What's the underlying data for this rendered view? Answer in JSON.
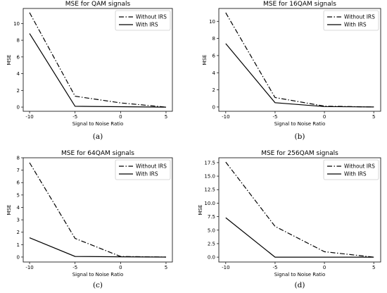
{
  "chart_data": [
    {
      "type": "line",
      "title": "MSE for QAM signals",
      "xlabel": "Signal to Noise Ratio",
      "ylabel": "MSE",
      "caption": "(a)",
      "x": [
        -10,
        -5,
        0,
        5
      ],
      "x_ticks": [
        -10,
        -5,
        0,
        5
      ],
      "y_ticks": [
        0,
        2,
        4,
        6,
        8,
        10
      ],
      "ylim": [
        -0.5,
        11.8
      ],
      "legend_position": "top-right",
      "series": [
        {
          "name": "Without IRS",
          "style": "dashdot",
          "values": [
            11.3,
            1.3,
            0.5,
            0.0
          ]
        },
        {
          "name": "With IRS",
          "style": "solid",
          "values": [
            8.8,
            0.1,
            0.05,
            0.0
          ]
        }
      ]
    },
    {
      "type": "line",
      "title": "MSE for 16QAM signals",
      "xlabel": "Signal to Noise Ratio",
      "ylabel": "MSE",
      "caption": "(b)",
      "x": [
        -10,
        -5,
        0,
        5
      ],
      "x_ticks": [
        -10,
        -5,
        0,
        5
      ],
      "y_ticks": [
        0,
        2,
        4,
        6,
        8,
        10
      ],
      "ylim": [
        -0.5,
        11.5
      ],
      "legend_position": "top-right",
      "series": [
        {
          "name": "Without IRS",
          "style": "dashdot",
          "values": [
            11.0,
            1.1,
            0.1,
            0.0
          ]
        },
        {
          "name": "With IRS",
          "style": "solid",
          "values": [
            7.4,
            0.5,
            0.05,
            0.0
          ]
        }
      ]
    },
    {
      "type": "line",
      "title": "MSE for 64QAM signals",
      "xlabel": "Signal to Noise Ratio",
      "ylabel": "MSE",
      "caption": "(c)",
      "x": [
        -10,
        -5,
        0,
        5
      ],
      "x_ticks": [
        -10,
        -5,
        0,
        5
      ],
      "y_ticks": [
        0,
        1,
        2,
        3,
        4,
        5,
        6,
        7,
        8
      ],
      "ylim": [
        -0.4,
        8.0
      ],
      "legend_position": "top-right",
      "series": [
        {
          "name": "Without IRS",
          "style": "dashdot",
          "values": [
            7.6,
            1.5,
            0.05,
            0.0
          ]
        },
        {
          "name": "With IRS",
          "style": "solid",
          "values": [
            1.55,
            0.05,
            0.02,
            0.0
          ]
        }
      ]
    },
    {
      "type": "line",
      "title": "MSE for 256QAM signals",
      "xlabel": "Signal to Noise Ratio",
      "ylabel": "MSE",
      "caption": "(d)",
      "x": [
        -10,
        -5,
        0,
        5
      ],
      "x_ticks": [
        -10,
        -5,
        0,
        5
      ],
      "y_ticks": [
        0.0,
        2.5,
        5.0,
        7.5,
        10.0,
        12.5,
        15.0,
        17.5
      ],
      "y_tick_labels": [
        "0.0",
        "2.5",
        "5.0",
        "7.5",
        "10.0",
        "12.5",
        "15.0",
        "17.5"
      ],
      "ylim": [
        -0.9,
        18.4
      ],
      "legend_position": "top-right",
      "series": [
        {
          "name": "Without IRS",
          "style": "dashdot",
          "values": [
            17.6,
            5.7,
            1.0,
            0.0
          ]
        },
        {
          "name": "With IRS",
          "style": "solid",
          "values": [
            7.3,
            0.0,
            0.0,
            0.0
          ]
        }
      ]
    }
  ]
}
